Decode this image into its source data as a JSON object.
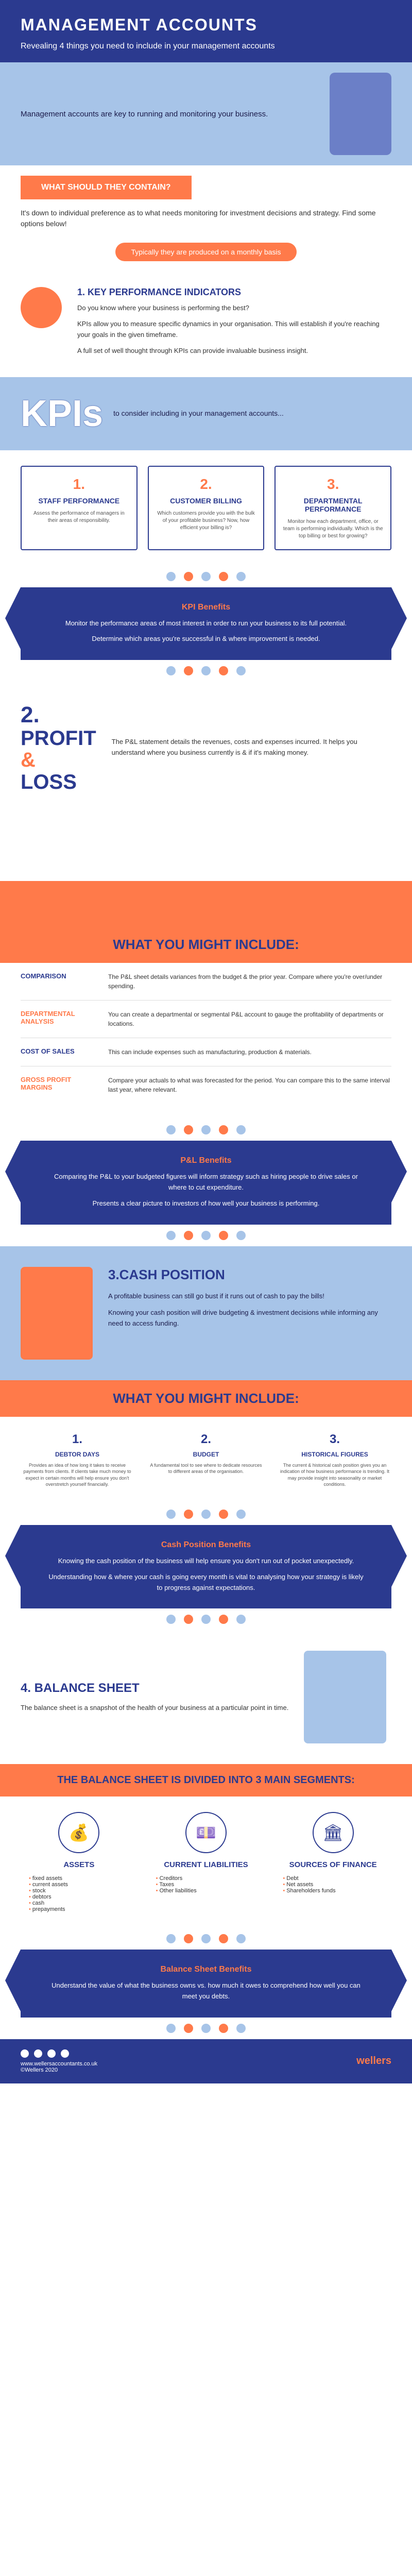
{
  "colors": {
    "navy": "#2b3a8f",
    "orange": "#ff7a4a",
    "lightblue": "#a7c4e8",
    "white": "#ffffff"
  },
  "header": {
    "title": "MANAGEMENT ACCOUNTS",
    "subtitle": "Revealing 4 things you need to include in your management accounts"
  },
  "intro": {
    "text": "Management accounts are key to running and monitoring your business."
  },
  "contain": {
    "banner": "WHAT SHOULD THEY CONTAIN?",
    "text": "It's down to individual preference as to what needs monitoring for investment decisions and strategy. Find some options below!",
    "pill": "Typically they are produced on a monthly basis"
  },
  "kpi_intro": {
    "title": "1. KEY PERFORMANCE INDICATORS",
    "p1": "Do you know where your business is performing the best?",
    "p2": "KPIs allow you to measure specific dynamics in your organisation. This will establish if you're reaching your goals in the given timeframe.",
    "p3": "A full set of well thought through KPIs can provide invaluable business insight."
  },
  "kpis_big": {
    "title": "KPIs",
    "sub": "to consider including in your management accounts..."
  },
  "kpi_cards": [
    {
      "num": "1.",
      "title": "STAFF PERFORMANCE",
      "desc": "Assess the performance of managers in their areas of responsibility."
    },
    {
      "num": "2.",
      "title": "CUSTOMER BILLING",
      "desc": "Which customers provide you with the bulk of your profitable business? Now, how efficient your billing is?"
    },
    {
      "num": "3.",
      "title": "DEPARTMENTAL PERFORMANCE",
      "desc": "Monitor how each department, office, or team is performing individually. Which is the top billing or best for growing?"
    }
  ],
  "kpi_benefits": {
    "title": "KPI Benefits",
    "p1": "Monitor the performance areas of most interest in order to run your business to its full potential.",
    "p2": "Determine which areas you're successful in & where improvement is needed."
  },
  "pl": {
    "num": "2.",
    "title1": "PROFIT",
    "amp": "&",
    "title2": "LOSS",
    "desc": "The P&L statement details the revenues, costs and expenses incurred. It helps you understand where you business currently is & if it's making money."
  },
  "include_header": "WHAT YOU MIGHT INCLUDE:",
  "pl_rows": [
    {
      "label": "COMPARISON",
      "color": "navy",
      "desc": "The P&L sheet details variances from the budget & the prior year. Compare where you're over/under spending."
    },
    {
      "label": "DEPARTMENTAL ANALYSIS",
      "color": "orange",
      "desc": "You can create a departmental or segmental P&L account to gauge the profitability of departments or locations."
    },
    {
      "label": "COST OF SALES",
      "color": "navy",
      "desc": "This can include expenses such as manufacturing, production & materials."
    },
    {
      "label": "GROSS PROFIT MARGINS",
      "color": "orange",
      "desc": "Compare your actuals to what was forecasted for the period. You can compare this to the same interval last year, where relevant."
    }
  ],
  "pl_benefits": {
    "title": "P&L Benefits",
    "p1": "Comparing the P&L to your budgeted figures will inform strategy such as hiring people to drive sales or where to cut expenditure.",
    "p2": "Presents a clear picture to investors of how well your business is performing."
  },
  "cash": {
    "title": "3.CASH POSITION",
    "p1": "A profitable business can still go bust if it runs out of cash to pay the bills!",
    "p2": "Knowing your cash position will drive budgeting & investment decisions while informing any need to access funding."
  },
  "cash_items": [
    {
      "num": "1.",
      "title": "DEBTOR DAYS",
      "desc": "Provides an idea of how long it takes to receive payments from clients. If clients take much money to expect in certain months will help ensure you don't overstretch yourself financially."
    },
    {
      "num": "2.",
      "title": "BUDGET",
      "desc": "A fundamental tool to see where to dedicate resources to different areas of the organisation."
    },
    {
      "num": "3.",
      "title": "HISTORICAL FIGURES",
      "desc": "The current & historical cash position gives you an indication of how business performance is trending. It may provide insight into seasonality or market conditions."
    }
  ],
  "cash_benefits": {
    "title": "Cash Position Benefits",
    "p1": "Knowing the cash position of the business will help ensure you don't run out of pocket unexpectedly.",
    "p2": "Understanding how & where your cash is going every month is vital to analysing how your strategy is likely to progress against expectations."
  },
  "balance": {
    "title": "4. BALANCE SHEET",
    "desc": "The balance sheet is a snapshot of the health of your business at a particular point in time."
  },
  "segments_header": "THE BALANCE SHEET IS DIVIDED INTO 3 MAIN SEGMENTS:",
  "segments": [
    {
      "icon": "💰",
      "title": "ASSETS",
      "items": [
        "fixed assets",
        "current assets",
        "stock",
        "debtors",
        "cash",
        "prepayments"
      ]
    },
    {
      "icon": "💷",
      "title": "CURRENT LIABILITIES",
      "items": [
        "Creditors",
        "Taxes",
        "Other liabilities"
      ]
    },
    {
      "icon": "🏛",
      "title": "SOURCES OF FINANCE",
      "items": [
        "Debt",
        "Net assets",
        "Shareholders funds"
      ]
    }
  ],
  "balance_benefits": {
    "title": "Balance Sheet Benefits",
    "p1": "Understand the value of what the business owns vs. how much it owes to comprehend how well you can meet you debts."
  },
  "footer": {
    "url": "www.wellersaccountants.co.uk",
    "copyright": "©Wellers 2020",
    "logo": "wellers"
  }
}
